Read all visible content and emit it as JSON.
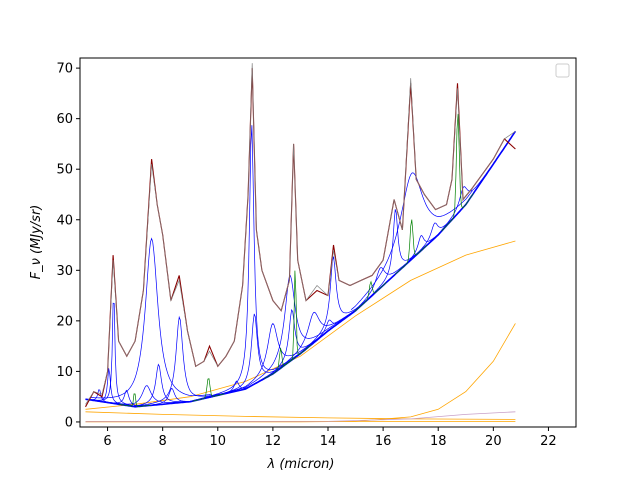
{
  "chart_data": {
    "type": "line",
    "title": "",
    "xlabel": "λ (micron)",
    "ylabel": "F_ν (MJy/sr)",
    "xlim": [
      5.0,
      23.0
    ],
    "ylim": [
      -1,
      72
    ],
    "xticks": [
      6,
      8,
      10,
      12,
      14,
      16,
      18,
      20,
      22
    ],
    "yticks": [
      0,
      10,
      20,
      30,
      40,
      50,
      60,
      70
    ],
    "grid": false,
    "legend": "upper right (empty)",
    "colors": {
      "data": "#8b0000",
      "model": "#808080",
      "pah": "#0000ff",
      "lines": "#008000",
      "continuum": "#ffa500",
      "extinction": "#c8a0c8"
    },
    "baseline": {
      "x": [
        5.2,
        7,
        9,
        11,
        12,
        13,
        14,
        15,
        16,
        17,
        18,
        19,
        20,
        20.8
      ],
      "y": [
        4.5,
        3,
        4,
        6.5,
        9.5,
        13.5,
        18,
        22,
        27,
        32,
        37,
        43,
        51,
        57.5
      ]
    },
    "series": [
      {
        "name": "",
        "role": "data",
        "x": [
          5.2,
          5.5,
          5.8,
          6.0,
          6.2,
          6.4,
          6.7,
          7.0,
          7.3,
          7.6,
          7.8,
          8.0,
          8.3,
          8.6,
          8.9,
          9.2,
          9.5,
          9.7,
          10.0,
          10.3,
          10.6,
          10.9,
          11.1,
          11.25,
          11.4,
          11.6,
          12.0,
          12.3,
          12.6,
          12.75,
          12.9,
          13.2,
          13.6,
          14.0,
          14.2,
          14.4,
          14.8,
          15.2,
          15.6,
          16.0,
          16.4,
          16.7,
          17.0,
          17.2,
          17.5,
          17.9,
          18.3,
          18.5,
          18.7,
          18.9,
          19.2,
          19.6,
          20.0,
          20.4,
          20.8
        ],
        "y": [
          3,
          6,
          5,
          10,
          33,
          16,
          13,
          16,
          26,
          52,
          43,
          37,
          24,
          29,
          18,
          11,
          12,
          15,
          11,
          13,
          16,
          27,
          45,
          70,
          38,
          30,
          24,
          22,
          28,
          55,
          32,
          24,
          26,
          25,
          35,
          28,
          27,
          28,
          29,
          32,
          44,
          38,
          67,
          48,
          45,
          42,
          43,
          48,
          67,
          44,
          46,
          49,
          52,
          56,
          54
        ]
      },
      {
        "name": "",
        "role": "model",
        "x": [
          5.2,
          5.5,
          5.8,
          6.0,
          6.2,
          6.4,
          6.7,
          7.0,
          7.3,
          7.6,
          7.8,
          8.0,
          8.3,
          8.6,
          8.9,
          9.2,
          9.5,
          9.7,
          10.0,
          10.3,
          10.6,
          10.9,
          11.1,
          11.25,
          11.4,
          11.6,
          12.0,
          12.3,
          12.6,
          12.75,
          12.9,
          13.2,
          13.6,
          14.0,
          14.2,
          14.4,
          14.8,
          15.2,
          15.6,
          16.0,
          16.4,
          16.7,
          17.0,
          17.2,
          17.5,
          17.9,
          18.3,
          18.5,
          18.7,
          18.9,
          19.2,
          19.6,
          20.0,
          20.4,
          20.8
        ],
        "y": [
          3.5,
          6,
          5.5,
          10,
          32,
          16,
          13,
          16,
          26,
          51,
          43,
          37,
          24,
          28,
          18,
          11,
          12,
          14,
          11,
          13,
          16,
          27,
          45,
          71,
          38,
          30,
          24,
          22,
          28,
          55,
          32,
          24,
          27,
          25,
          34,
          28,
          27,
          28,
          29,
          32,
          44,
          38,
          68,
          48,
          45,
          42,
          43,
          48,
          66,
          44,
          46,
          49,
          52,
          56,
          57.5
        ]
      },
      {
        "name": "",
        "role": "continuum",
        "x": [
          5.2,
          7,
          9,
          11,
          13,
          15,
          17,
          19,
          20.8
        ],
        "y": [
          2.5,
          3.5,
          5,
          8,
          13,
          21,
          28,
          33,
          35.8
        ]
      },
      {
        "name": "",
        "role": "continuum",
        "x": [
          5.2,
          8,
          11,
          13,
          15,
          17,
          18,
          19,
          20,
          20.8
        ],
        "y": [
          0,
          0,
          0,
          0,
          0.1,
          1,
          2.5,
          6,
          12,
          19.5
        ]
      },
      {
        "name": "",
        "role": "continuum",
        "x": [
          5.2,
          8,
          11,
          14,
          17,
          20.8
        ],
        "y": [
          2,
          1.5,
          1.1,
          0.8,
          0.6,
          0.5
        ]
      },
      {
        "name": "",
        "role": "continuum",
        "x": [
          5.2,
          20.8
        ],
        "y": [
          0.1,
          0.1
        ]
      },
      {
        "name": "",
        "role": "extinction",
        "x": [
          5.2,
          14,
          17,
          19,
          20.8
        ],
        "y": [
          0.05,
          0.1,
          0.6,
          1.5,
          2
        ]
      }
    ],
    "pah_features": [
      {
        "center": 5.7,
        "height": 2.5,
        "width": 0.12
      },
      {
        "center": 6.05,
        "height": 7,
        "width": 0.12
      },
      {
        "center": 6.22,
        "height": 23,
        "width": 0.1
      },
      {
        "center": 6.69,
        "height": 3,
        "width": 0.2
      },
      {
        "center": 7.42,
        "height": 4,
        "width": 0.4
      },
      {
        "center": 7.6,
        "height": 33,
        "width": 0.55
      },
      {
        "center": 7.85,
        "height": 8,
        "width": 0.25
      },
      {
        "center": 8.33,
        "height": 3,
        "width": 0.25
      },
      {
        "center": 8.61,
        "height": 17,
        "width": 0.3
      },
      {
        "center": 10.68,
        "height": 2,
        "width": 0.2
      },
      {
        "center": 11.23,
        "height": 52,
        "width": 0.2
      },
      {
        "center": 11.33,
        "height": 14,
        "width": 0.25
      },
      {
        "center": 11.99,
        "height": 10,
        "width": 0.45
      },
      {
        "center": 12.62,
        "height": 17,
        "width": 0.45
      },
      {
        "center": 12.69,
        "height": 10,
        "width": 0.25
      },
      {
        "center": 13.48,
        "height": 6,
        "width": 0.5
      },
      {
        "center": 14.04,
        "height": 2,
        "width": 0.25
      },
      {
        "center": 14.19,
        "height": 14,
        "width": 0.25
      },
      {
        "center": 15.9,
        "height": 4,
        "width": 0.4
      },
      {
        "center": 16.45,
        "height": 13,
        "width": 0.2
      },
      {
        "center": 17.04,
        "height": 17,
        "width": 1.0
      },
      {
        "center": 17.375,
        "height": 3,
        "width": 0.25
      },
      {
        "center": 17.87,
        "height": 3,
        "width": 0.3
      },
      {
        "center": 18.92,
        "height": 4,
        "width": 0.35
      }
    ],
    "emission_lines": [
      {
        "center": 6.98,
        "height": 3,
        "width": 0.08
      },
      {
        "center": 9.66,
        "height": 4,
        "width": 0.12
      },
      {
        "center": 12.28,
        "height": 4,
        "width": 0.1
      },
      {
        "center": 12.81,
        "height": 18,
        "width": 0.08
      },
      {
        "center": 15.55,
        "height": 3,
        "width": 0.12
      },
      {
        "center": 17.03,
        "height": 8,
        "width": 0.12
      },
      {
        "center": 18.71,
        "height": 20,
        "width": 0.12
      }
    ]
  }
}
